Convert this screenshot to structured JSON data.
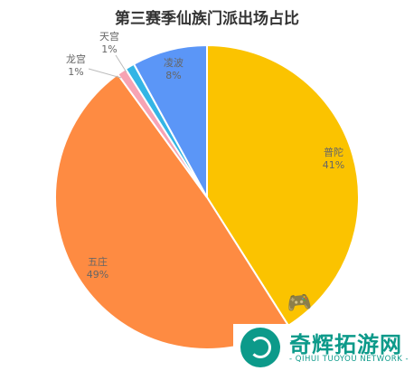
{
  "chart_data": {
    "type": "pie",
    "title": "第三赛季仙族门派出场占比",
    "slices": [
      {
        "label": "普陀",
        "value": 41,
        "pct_text": "41%",
        "color": "#FBC300"
      },
      {
        "label": "五庄",
        "value": 49,
        "pct_text": "49%",
        "color": "#FE8B42"
      },
      {
        "label": "龙宫",
        "value": 1,
        "pct_text": "1%",
        "color": "#F7A3B3"
      },
      {
        "label": "天宫",
        "value": 1,
        "pct_text": "1%",
        "color": "#34B5E5"
      },
      {
        "label": "凌波",
        "value": 8,
        "pct_text": "8%",
        "color": "#5B96F7"
      }
    ]
  },
  "watermark": {
    "name": "奇辉拓游网",
    "subtitle": "- QIHUI TUOYOU NETWORK -"
  }
}
